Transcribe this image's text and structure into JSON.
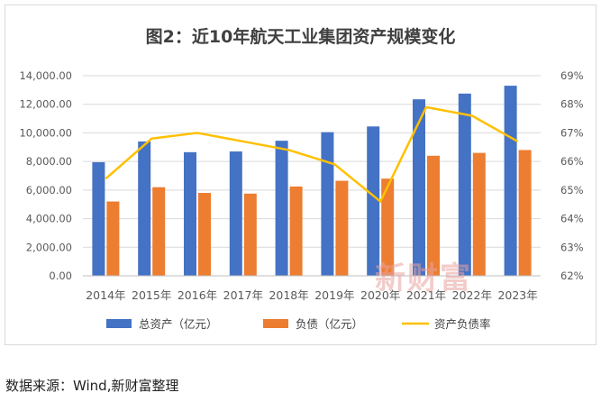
{
  "chart_data": {
    "type": "bar",
    "title": "图2：近10年航天工业集团资产规模变化",
    "categories": [
      "2014年",
      "2015年",
      "2016年",
      "2017年",
      "2018年",
      "2019年",
      "2020年",
      "2021年",
      "2022年",
      "2023年"
    ],
    "series": [
      {
        "name": "总资产（亿元）",
        "type": "bar",
        "axis": "left",
        "color": "#4472c4",
        "values": [
          7950,
          9400,
          8650,
          8700,
          9450,
          10050,
          10450,
          12350,
          12750,
          13300
        ]
      },
      {
        "name": "负债（亿元）",
        "type": "bar",
        "axis": "left",
        "color": "#ed7d31",
        "values": [
          5200,
          6200,
          5800,
          5750,
          6250,
          6650,
          6800,
          8400,
          8600,
          8800
        ]
      },
      {
        "name": "资产负债率",
        "type": "line",
        "axis": "right",
        "color": "#ffc000",
        "values": [
          65.4,
          66.8,
          67.0,
          66.7,
          66.4,
          65.9,
          64.6,
          67.9,
          67.6,
          66.7
        ]
      }
    ],
    "ylim_left": [
      0,
      14000
    ],
    "yticks_left": [
      "0.00",
      "2,000.00",
      "4,000.00",
      "6,000.00",
      "8,000.00",
      "10,000.00",
      "12,000.00",
      "14,000.00"
    ],
    "ylim_right": [
      62,
      69
    ],
    "yticks_right": [
      "62%",
      "63%",
      "64%",
      "65%",
      "66%",
      "67%",
      "68%",
      "69%"
    ],
    "grid": true,
    "legend_position": "bottom"
  },
  "watermark": "新财富",
  "source_note": "数据来源：Wind,新财富整理"
}
